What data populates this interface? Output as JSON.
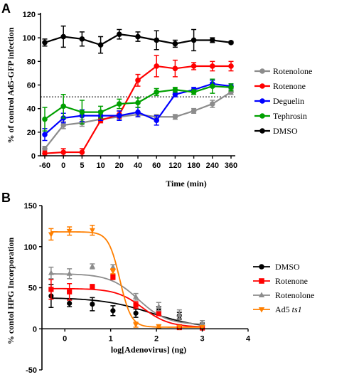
{
  "chart_data": [
    {
      "type": "line",
      "panel_label": "A",
      "xlabel": "Time (min)",
      "ylabel": "% of control Ad5-GFP infection",
      "categories": [
        "-60",
        "0",
        "5",
        "10",
        "20",
        "40",
        "60",
        "120",
        "180",
        "240",
        "360"
      ],
      "ylim": [
        0,
        120
      ],
      "yticks": [
        0,
        20,
        40,
        60,
        80,
        100,
        120
      ],
      "reference_line": 50,
      "legend_position": "right",
      "series": [
        {
          "name": "Rotenolone",
          "color": "#8c8c8c",
          "marker": "circle",
          "values": [
            6,
            26,
            28,
            31,
            33,
            35,
            33,
            33,
            38,
            44,
            54
          ],
          "errors": [
            2,
            3,
            3,
            2,
            2,
            2,
            2,
            2,
            2,
            3,
            2
          ]
        },
        {
          "name": "Rotenone",
          "color": "#ff0000",
          "marker": "circle",
          "values": [
            2,
            3,
            3,
            30,
            35,
            64,
            76,
            74,
            76,
            76,
            76
          ],
          "errors": [
            2,
            3,
            3,
            2,
            3,
            5,
            9,
            7,
            3,
            4,
            4
          ]
        },
        {
          "name": "Deguelin",
          "color": "#0000ff",
          "marker": "circle",
          "values": [
            18,
            32,
            34,
            34,
            34,
            37,
            30,
            52,
            56,
            61,
            59
          ],
          "errors": [
            5,
            4,
            5,
            4,
            4,
            4,
            4,
            2,
            2,
            3,
            2
          ]
        },
        {
          "name": "Tephrosin",
          "color": "#00a000",
          "marker": "circle",
          "values": [
            31,
            42,
            37,
            37,
            44,
            45,
            54,
            56,
            54,
            59,
            58
          ],
          "errors": [
            10,
            10,
            10,
            5,
            4,
            4,
            3,
            2,
            2,
            6,
            3
          ]
        },
        {
          "name": "DMSO",
          "color": "#000000",
          "marker": "circle",
          "values": [
            96,
            101,
            99,
            94,
            103,
            101,
            98,
            95,
            98,
            98,
            96
          ],
          "errors": [
            3,
            9,
            6,
            7,
            4,
            4,
            8,
            3,
            9,
            2,
            1
          ]
        }
      ]
    },
    {
      "type": "scatter",
      "panel_label": "B",
      "xlabel": "log[Adenovirus] (ng)",
      "ylabel": "% contol HPG Incorporation",
      "xlim": [
        -0.5,
        4
      ],
      "xticks": [
        0,
        1,
        2,
        3,
        4
      ],
      "ylim": [
        -50,
        150
      ],
      "yticks": [
        -50,
        0,
        50,
        100,
        150
      ],
      "legend_position": "right",
      "series": [
        {
          "name": "DMSO",
          "color": "#000000",
          "marker": "circle",
          "x": [
            -0.3,
            0.1,
            0.6,
            1.05,
            1.55,
            2.05,
            2.5,
            3.0
          ],
          "y": [
            40,
            31,
            30,
            22,
            19,
            22,
            16,
            4
          ],
          "errors": [
            14,
            4,
            8,
            6,
            5,
            5,
            4,
            3
          ],
          "fit": {
            "top": 38,
            "bottom": 0,
            "ec50": 1.9,
            "slope": -0.8
          }
        },
        {
          "name": "Rotenone",
          "color": "#ff0000",
          "marker": "square",
          "x": [
            -0.3,
            0.1,
            0.6,
            1.05,
            1.55,
            2.05,
            2.5,
            3.0
          ],
          "y": [
            48,
            45,
            51,
            63,
            29,
            19,
            2,
            1
          ],
          "errors": [
            12,
            10,
            3,
            3,
            4,
            3,
            3,
            2
          ],
          "fit": {
            "top": 49,
            "bottom": 2,
            "ec50": 1.7,
            "slope": -1.5
          }
        },
        {
          "name": "Rotenolone",
          "color": "#8c8c8c",
          "marker": "triangle-up",
          "x": [
            -0.3,
            0.1,
            0.6,
            1.05,
            1.55,
            2.05,
            2.5,
            3.0
          ],
          "y": [
            68,
            67,
            76,
            75,
            39,
            27,
            17,
            7
          ],
          "errors": [
            7,
            6,
            3,
            3,
            4,
            5,
            6,
            3
          ],
          "fit": {
            "top": 67,
            "bottom": 5,
            "ec50": 1.6,
            "slope": -1.4
          }
        },
        {
          "name": "Ad5 ts1",
          "color": "#ff7f00",
          "marker": "triangle-down",
          "x": [
            -0.3,
            0.1,
            0.6,
            1.05,
            1.55,
            2.05,
            2.5,
            3.0
          ],
          "y": [
            115,
            119,
            120,
            70,
            5,
            3,
            2,
            2
          ],
          "errors": [
            7,
            5,
            6,
            3,
            3,
            2,
            2,
            2
          ],
          "fit": {
            "top": 118,
            "bottom": 2,
            "ec50": 1.2,
            "slope": -3.5
          }
        }
      ]
    }
  ]
}
